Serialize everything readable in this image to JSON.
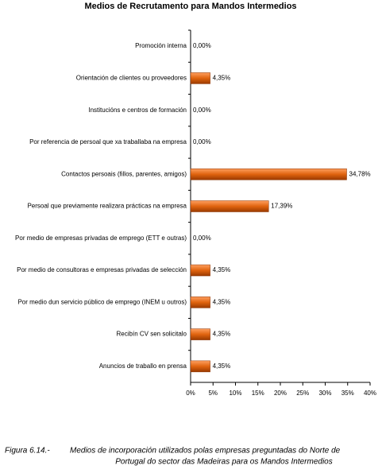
{
  "chart_data": {
    "type": "barh",
    "title": "Medios de Recrutamento para Mandos Intermedios",
    "categories": [
      "Promoción interna",
      "Orientación de clientes ou proveedores",
      "Institucións e centros de formación",
      "Por referencia de persoal que xa traballaba na empresa",
      "Contactos persoais (fillos, parentes, amigos)",
      "Persoal que previamente realizara prácticas na empresa",
      "Por medio de empresas privadas de emprego (ETT e outras)",
      "Por medio  de consultoras e empresas privadas de selección",
      "Por medio dun servicio público de emprego (INEM u outros)",
      "Recibín CV sen solicitalo",
      "Anuncios de traballo en prensa"
    ],
    "values": [
      0,
      4.35,
      0,
      0,
      34.78,
      17.39,
      0,
      4.35,
      4.35,
      4.35,
      4.35
    ],
    "value_labels": [
      "0,00%",
      "4,35%",
      "0,00%",
      "0,00%",
      "34,78%",
      "17,39%",
      "0,00%",
      "4,35%",
      "4,35%",
      "4,35%",
      "4,35%"
    ],
    "color": "#e0640f",
    "xlim": [
      0,
      40
    ],
    "xticks": [
      {
        "value": 0,
        "label": "0%"
      },
      {
        "value": 5,
        "label": "5%"
      },
      {
        "value": 10,
        "label": "10%"
      },
      {
        "value": 15,
        "label": "15%"
      },
      {
        "value": 20,
        "label": "20%"
      },
      {
        "value": 25,
        "label": "25%"
      },
      {
        "value": 30,
        "label": "30%"
      },
      {
        "value": 35,
        "label": "35%"
      },
      {
        "value": 40,
        "label": "40%"
      }
    ],
    "caption_label": "Figura 6.14.-",
    "caption": [
      "Medios de incorporación utilizados polas empresas preguntadas do Norte de",
      "Portugal do sector das Madeiras para os Mandos Intermedios"
    ]
  }
}
